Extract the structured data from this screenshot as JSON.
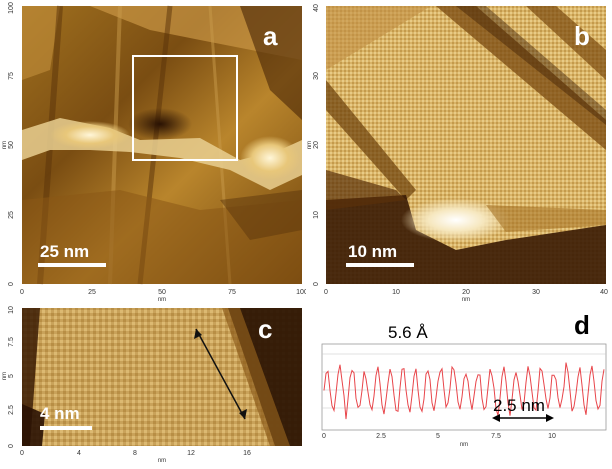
{
  "panels": {
    "a": {
      "label": "a",
      "scale_bar": "25 nm",
      "x_unit": "nm",
      "y_unit": "nm",
      "x_ticks": [
        "0",
        "25",
        "50",
        "75",
        "100"
      ],
      "y_ticks": [
        "0",
        "25",
        "50",
        "75",
        "100"
      ]
    },
    "b": {
      "label": "b",
      "scale_bar": "10 nm",
      "x_unit": "nm",
      "y_unit": "nm",
      "x_ticks": [
        "0",
        "10",
        "20",
        "30",
        "40"
      ],
      "y_ticks": [
        "0",
        "10",
        "20",
        "30",
        "40"
      ]
    },
    "c": {
      "label": "c",
      "scale_bar": "4 nm",
      "x_unit": "nm",
      "y_unit": "nm",
      "x_ticks": [
        "0",
        "4",
        "8",
        "12",
        "16"
      ],
      "y_ticks": [
        "0",
        "2.5",
        "5",
        "7.5",
        "10"
      ]
    },
    "d": {
      "label": "d",
      "annotation": "5.6 Å",
      "period_label": "2.5 nm",
      "x_unit": "nm",
      "x_ticks": [
        "0",
        "2.5",
        "5",
        "7.5",
        "10"
      ]
    }
  },
  "colors": {
    "afm_dark": "#3a1d05",
    "afm_mid": "#b8862f",
    "afm_light": "#f3e2b0",
    "profile_line": "#e8454a"
  }
}
